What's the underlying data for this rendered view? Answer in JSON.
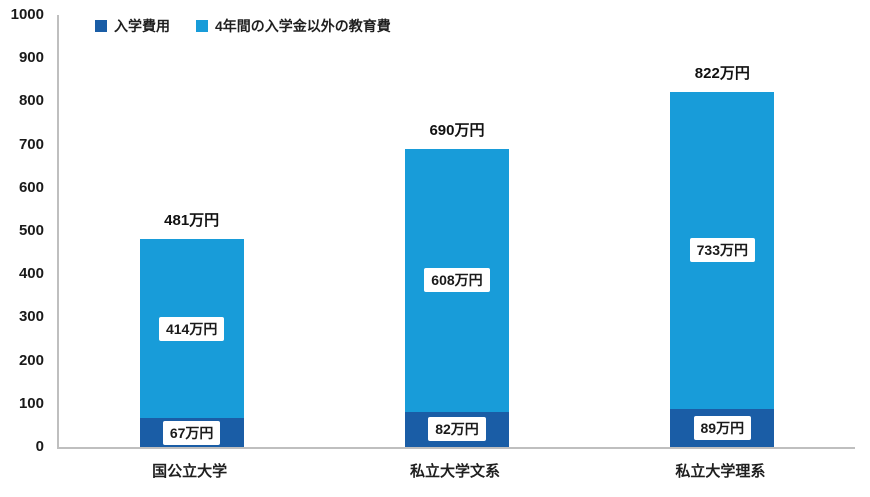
{
  "chart_data": {
    "type": "bar",
    "stacked": true,
    "title": "",
    "unit": "万円",
    "categories": [
      "国公立大学",
      "私立大学文系",
      "私立大学理系"
    ],
    "series": [
      {
        "name": "入学費用",
        "color": "#1A5DA6",
        "values": [
          67,
          82,
          89
        ],
        "labels": [
          "67万円",
          "82万円",
          "89万円"
        ]
      },
      {
        "name": "4年間の入学金以外の教育費",
        "color": "#189CD9",
        "values": [
          414,
          608,
          733
        ],
        "labels": [
          "414万円",
          "608万円",
          "733万円"
        ]
      }
    ],
    "totals": [
      481,
      690,
      822
    ],
    "total_labels": [
      "481万円",
      "690万円",
      "822万円"
    ],
    "ylim": [
      0,
      1000
    ],
    "yticks": [
      0,
      100,
      200,
      300,
      400,
      500,
      600,
      700,
      800,
      900,
      1000
    ],
    "legend_position": "top-left",
    "grid": false,
    "axis_color": "#bfbfbf"
  }
}
